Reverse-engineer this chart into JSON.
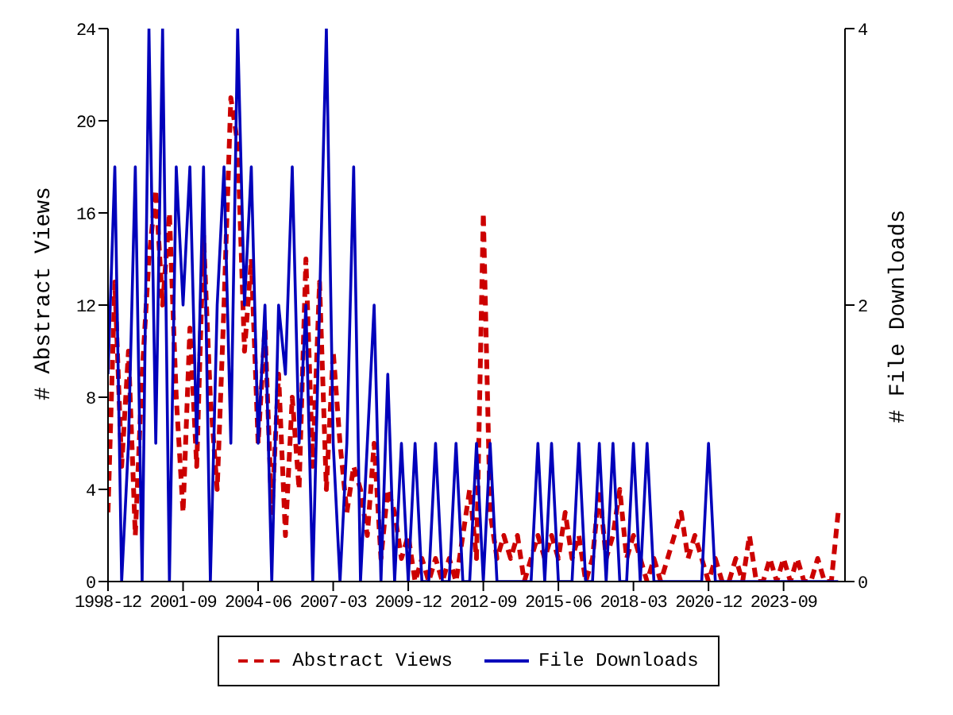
{
  "chart_data": {
    "type": "line",
    "xlabel": null,
    "ylabel": "# Abstract Views",
    "y2label": "# File Downloads",
    "x": [
      "1998-12",
      "1999-03",
      "1999-06",
      "1999-09",
      "1999-12",
      "2000-03",
      "2000-06",
      "2000-09",
      "2000-12",
      "2001-03",
      "2001-06",
      "2001-09",
      "2001-12",
      "2002-03",
      "2002-06",
      "2002-09",
      "2002-12",
      "2003-03",
      "2003-06",
      "2003-09",
      "2003-12",
      "2004-03",
      "2004-06",
      "2004-09",
      "2004-12",
      "2005-03",
      "2005-06",
      "2005-09",
      "2005-12",
      "2006-03",
      "2006-06",
      "2006-09",
      "2006-12",
      "2007-03",
      "2007-06",
      "2007-09",
      "2007-12",
      "2008-03",
      "2008-06",
      "2008-09",
      "2008-12",
      "2009-03",
      "2009-06",
      "2009-09",
      "2009-12",
      "2010-03",
      "2010-06",
      "2010-09",
      "2010-12",
      "2011-03",
      "2011-06",
      "2011-09",
      "2011-12",
      "2012-03",
      "2012-06",
      "2012-09",
      "2012-12",
      "2013-03",
      "2013-06",
      "2013-09",
      "2013-12",
      "2014-03",
      "2014-06",
      "2014-09",
      "2014-12",
      "2015-03",
      "2015-06",
      "2015-09",
      "2015-12",
      "2016-03",
      "2016-06",
      "2016-09",
      "2016-12",
      "2017-03",
      "2017-06",
      "2017-09",
      "2017-12",
      "2018-03",
      "2018-06",
      "2018-09",
      "2018-12",
      "2019-03",
      "2019-06",
      "2019-09",
      "2019-12",
      "2020-03",
      "2020-06",
      "2020-09",
      "2020-12",
      "2021-03",
      "2021-06",
      "2021-09",
      "2021-12",
      "2022-03",
      "2022-06",
      "2022-09",
      "2022-12",
      "2023-03",
      "2023-06",
      "2023-09",
      "2023-12",
      "2024-03",
      "2024-06",
      "2024-09",
      "2024-12",
      "2025-03",
      "2025-06",
      "2025-09"
    ],
    "series": [
      {
        "name": "Abstract Views",
        "color": "#cc0000",
        "line_style": "dashed",
        "values": [
          3,
          13,
          5,
          10,
          2,
          9,
          14,
          17,
          12,
          16,
          8,
          3,
          11,
          5,
          15,
          8,
          4,
          12,
          21,
          19,
          10,
          14,
          6,
          11,
          3,
          9,
          2,
          8,
          4,
          14,
          5,
          13,
          4,
          10,
          6,
          3,
          5,
          4,
          2,
          6,
          1,
          4,
          3,
          1,
          2,
          0,
          1,
          0,
          1,
          0,
          1,
          0,
          2,
          4,
          1,
          16,
          3,
          1,
          2,
          1,
          2,
          0,
          1,
          2,
          1,
          2,
          1,
          3,
          1,
          2,
          0,
          1,
          4,
          1,
          2,
          4,
          1,
          2,
          1,
          0,
          1,
          0,
          1,
          2,
          3,
          1,
          2,
          1,
          0,
          1,
          0,
          0,
          1,
          0,
          2,
          0,
          0,
          1,
          0,
          1,
          0,
          1,
          0,
          0,
          1,
          0,
          0,
          3
        ]
      },
      {
        "name": "File Downloads",
        "color": "#0000bb",
        "line_style": "solid",
        "axis": "y2",
        "values": [
          1.5,
          3,
          0,
          1,
          3,
          0,
          4,
          1,
          4,
          0,
          3,
          2,
          3,
          1,
          3,
          0,
          2,
          3,
          1,
          4,
          2,
          3,
          1,
          2,
          0,
          2,
          1.5,
          3,
          1,
          2,
          0,
          2,
          4,
          1,
          0,
          1,
          3,
          0,
          1,
          2,
          0,
          1.5,
          0,
          1,
          0,
          1,
          0,
          0,
          1,
          0,
          0,
          1,
          0,
          0,
          1,
          0,
          1,
          0,
          0,
          0,
          0,
          0,
          0,
          1,
          0,
          1,
          0,
          0,
          0,
          1,
          0,
          0,
          1,
          0,
          1,
          0,
          0,
          1,
          0,
          1,
          0,
          0,
          0,
          0,
          0,
          0,
          0,
          0,
          1,
          0,
          0,
          0,
          0,
          0,
          0,
          0,
          0,
          0,
          0,
          0,
          0,
          0,
          0,
          0,
          0,
          0,
          0,
          0
        ]
      }
    ],
    "xlim": [
      "1998-12",
      "2025-12"
    ],
    "xticks": [
      "1998-12",
      "2001-09",
      "2004-06",
      "2007-03",
      "2009-12",
      "2012-09",
      "2015-06",
      "2018-03",
      "2020-12",
      "2023-09"
    ],
    "ylim": [
      0,
      24
    ],
    "yticks": [
      0,
      4,
      8,
      12,
      16,
      20,
      24
    ],
    "y2lim": [
      0,
      4
    ],
    "y2ticks": [
      0,
      2,
      4
    ],
    "legend": "bottom",
    "marker": "none",
    "grid": false
  }
}
